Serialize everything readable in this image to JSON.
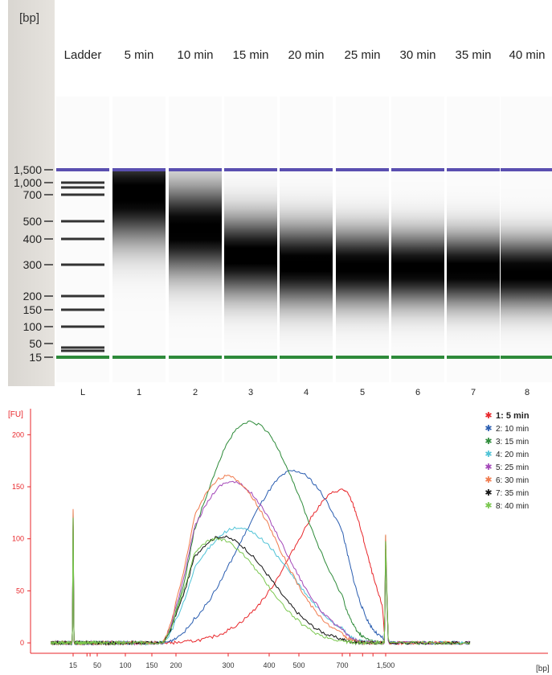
{
  "gel": {
    "unit_label": "[bp]",
    "lane_headers": [
      "Ladder",
      "5 min",
      "10 min",
      "15 min",
      "20 min",
      "25 min",
      "30 min",
      "35 min",
      "40 min"
    ],
    "lane_numbers": [
      "L",
      "1",
      "2",
      "3",
      "4",
      "5",
      "6",
      "7",
      "8"
    ],
    "size_labels": [
      "1,500",
      "1,000",
      "700",
      "500",
      "400",
      "300",
      "200",
      "150",
      "100",
      "50",
      "15"
    ],
    "marker_upper_color": "#5a4fb0",
    "marker_lower_color": "#2e8b3a"
  },
  "chart_data": {
    "type": "line",
    "ylabel": "[FU]",
    "xlabel": "[bp]",
    "y_ticks": [
      0,
      50,
      100,
      150,
      200
    ],
    "ylim": [
      -10,
      225
    ],
    "x_tick_labels": [
      "15",
      "50",
      "100",
      "150",
      "200",
      "300",
      "400",
      "500",
      "700",
      "1,500"
    ],
    "x_tick_values": [
      15,
      50,
      100,
      150,
      200,
      300,
      400,
      500,
      700,
      1500
    ],
    "legend_position": "top-right",
    "marker_peaks": [
      {
        "x": 15,
        "y": 135
      },
      {
        "x": 1500,
        "y": 125
      }
    ],
    "series": [
      {
        "name": "1: 5 min",
        "color": "#e8262a",
        "peak_x": 700,
        "peak_y": 147
      },
      {
        "name": "2: 10 min",
        "color": "#2a5db0",
        "peak_x": 480,
        "peak_y": 165
      },
      {
        "name": "3: 15 min",
        "color": "#2e8b3a",
        "peak_x": 350,
        "peak_y": 212
      },
      {
        "name": "4: 20 min",
        "color": "#4fc3d6",
        "peak_x": 320,
        "peak_y": 110
      },
      {
        "name": "5: 25 min",
        "color": "#a347b8",
        "peak_x": 305,
        "peak_y": 155
      },
      {
        "name": "6: 30 min",
        "color": "#f07b4e",
        "peak_x": 295,
        "peak_y": 160
      },
      {
        "name": "7: 35 min",
        "color": "#111111",
        "peak_x": 285,
        "peak_y": 102
      },
      {
        "name": "8: 40 min",
        "color": "#7ac74f",
        "peak_x": 275,
        "peak_y": 100
      }
    ]
  }
}
